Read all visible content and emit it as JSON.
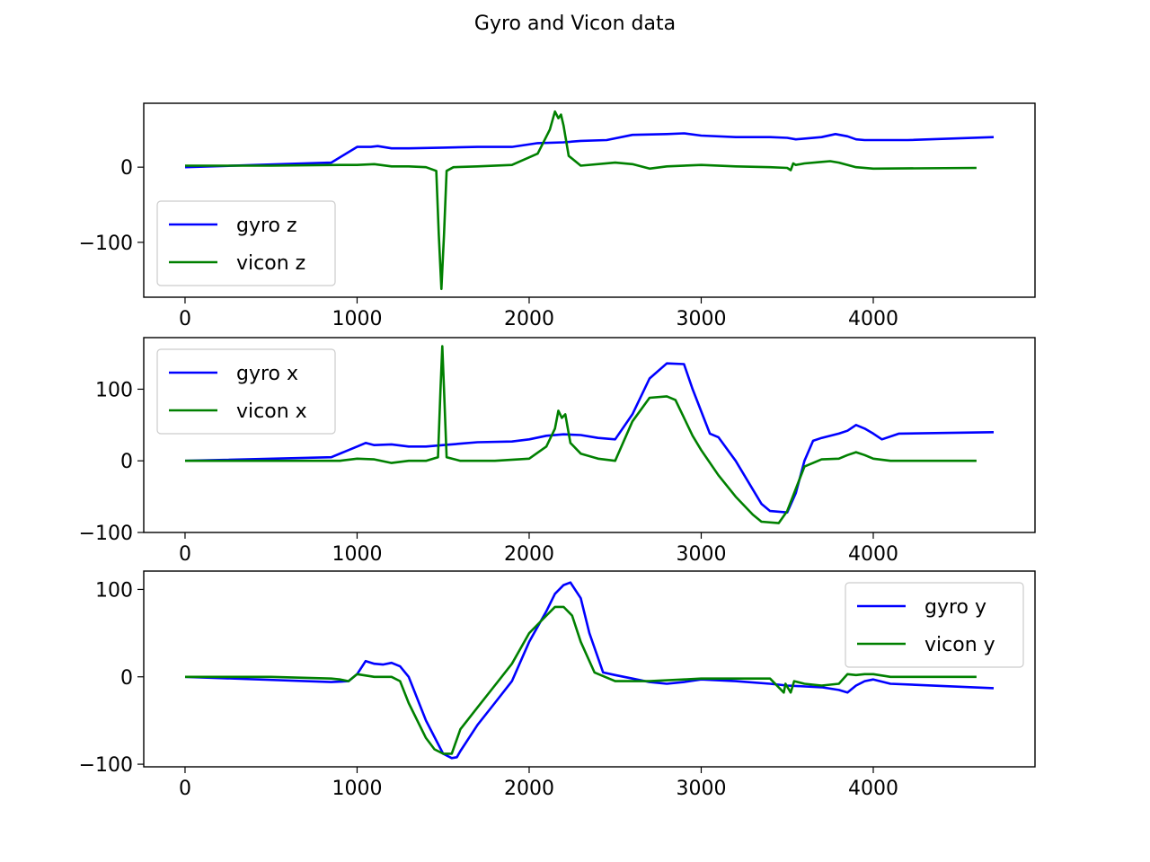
{
  "figure": {
    "title": "Gyro and Vicon data"
  },
  "colors": {
    "gyro": "#0000ff",
    "vicon": "#008000"
  },
  "chart_data": [
    {
      "type": "line",
      "title": "",
      "xlabel": "",
      "ylabel": "",
      "xlim": [
        -240,
        4940
      ],
      "ylim": [
        -173,
        85
      ],
      "xticks": [
        0,
        1000,
        2000,
        3000,
        4000
      ],
      "yticks": [
        0,
        -100
      ],
      "legend": "lower-left",
      "grid": false,
      "series": [
        {
          "name": "gyro z",
          "color": "#0000ff",
          "x": [
            0,
            850,
            1000,
            1080,
            1120,
            1200,
            1300,
            1500,
            1700,
            1900,
            2050,
            2200,
            2300,
            2450,
            2600,
            2800,
            2900,
            3000,
            3200,
            3400,
            3500,
            3550,
            3700,
            3780,
            3850,
            3900,
            3950,
            4050,
            4200,
            4700
          ],
          "y": [
            0,
            6,
            27,
            27,
            28,
            25,
            25,
            26,
            27,
            27,
            32,
            33,
            35,
            36,
            43,
            44,
            45,
            42,
            40,
            40,
            39,
            37,
            40,
            44,
            41,
            37,
            36,
            36,
            36,
            40
          ]
        },
        {
          "name": "vicon z",
          "color": "#008000",
          "x": [
            0,
            500,
            900,
            1000,
            1100,
            1200,
            1300,
            1400,
            1460,
            1475,
            1490,
            1505,
            1520,
            1560,
            1700,
            1900,
            2050,
            2120,
            2150,
            2170,
            2185,
            2200,
            2230,
            2300,
            2500,
            2600,
            2700,
            2800,
            3000,
            3200,
            3400,
            3500,
            3520,
            3535,
            3550,
            3600,
            3700,
            3750,
            3800,
            3900,
            4000,
            4600
          ],
          "y": [
            2,
            2,
            3,
            3,
            4,
            1,
            1,
            0,
            -5,
            -90,
            -162,
            -90,
            -5,
            0,
            1,
            3,
            18,
            50,
            74,
            65,
            70,
            55,
            15,
            2,
            6,
            4,
            -2,
            1,
            3,
            1,
            0,
            -1,
            -4,
            5,
            3,
            5,
            7,
            8,
            6,
            0,
            -2,
            -1
          ]
        }
      ]
    },
    {
      "type": "line",
      "title": "",
      "xlabel": "",
      "ylabel": "",
      "xlim": [
        -240,
        4940
      ],
      "ylim": [
        -100,
        172
      ],
      "xticks": [
        0,
        1000,
        2000,
        3000,
        4000
      ],
      "yticks": [
        100,
        0,
        -100
      ],
      "legend": "upper-left",
      "grid": false,
      "series": [
        {
          "name": "gyro x",
          "color": "#0000ff",
          "x": [
            0,
            850,
            1000,
            1050,
            1100,
            1200,
            1300,
            1400,
            1500,
            1600,
            1700,
            1900,
            2000,
            2100,
            2200,
            2300,
            2400,
            2500,
            2600,
            2700,
            2800,
            2900,
            2950,
            3050,
            3100,
            3200,
            3300,
            3350,
            3400,
            3500,
            3550,
            3600,
            3650,
            3700,
            3800,
            3850,
            3900,
            3950,
            4000,
            4050,
            4150,
            4700
          ],
          "y": [
            0,
            5,
            20,
            25,
            22,
            23,
            20,
            20,
            22,
            24,
            26,
            27,
            30,
            35,
            37,
            36,
            32,
            30,
            65,
            115,
            136,
            135,
            100,
            38,
            33,
            0,
            -40,
            -60,
            -70,
            -72,
            -45,
            0,
            28,
            32,
            38,
            42,
            50,
            45,
            38,
            30,
            38,
            40
          ]
        },
        {
          "name": "vicon x",
          "color": "#008000",
          "x": [
            0,
            500,
            900,
            1000,
            1100,
            1200,
            1300,
            1400,
            1470,
            1485,
            1495,
            1505,
            1520,
            1600,
            1800,
            2000,
            2100,
            2150,
            2170,
            2190,
            2210,
            2240,
            2300,
            2400,
            2500,
            2600,
            2700,
            2800,
            2850,
            2950,
            3000,
            3100,
            3200,
            3300,
            3350,
            3450,
            3500,
            3600,
            3700,
            3800,
            3850,
            3900,
            3950,
            4000,
            4100,
            4600
          ],
          "y": [
            0,
            0,
            0,
            3,
            2,
            -3,
            0,
            0,
            5,
            100,
            160,
            100,
            5,
            0,
            0,
            3,
            20,
            45,
            70,
            60,
            65,
            25,
            10,
            3,
            0,
            55,
            88,
            90,
            85,
            35,
            15,
            -20,
            -50,
            -75,
            -85,
            -87,
            -70,
            -8,
            2,
            3,
            8,
            12,
            8,
            3,
            0,
            0
          ]
        }
      ]
    },
    {
      "type": "line",
      "title": "",
      "xlabel": "",
      "ylabel": "",
      "xlim": [
        -240,
        4940
      ],
      "ylim": [
        -103,
        121
      ],
      "xticks": [
        0,
        1000,
        2000,
        3000,
        4000
      ],
      "yticks": [
        100,
        0,
        -100
      ],
      "legend": "upper-right",
      "grid": false,
      "series": [
        {
          "name": "gyro y",
          "color": "#0000ff",
          "x": [
            0,
            850,
            950,
            1000,
            1050,
            1100,
            1150,
            1200,
            1250,
            1300,
            1400,
            1500,
            1550,
            1580,
            1600,
            1700,
            1800,
            1900,
            2000,
            2100,
            2150,
            2200,
            2240,
            2300,
            2350,
            2430,
            2500,
            2600,
            2700,
            2800,
            2900,
            3000,
            3200,
            3400,
            3500,
            3700,
            3800,
            3850,
            3900,
            3950,
            4000,
            4100,
            4700
          ],
          "y": [
            0,
            -6,
            -5,
            3,
            18,
            15,
            14,
            16,
            12,
            0,
            -50,
            -88,
            -93,
            -92,
            -85,
            -55,
            -30,
            -5,
            40,
            75,
            95,
            105,
            108,
            90,
            50,
            5,
            2,
            -2,
            -6,
            -8,
            -6,
            -3,
            -5,
            -8,
            -10,
            -12,
            -15,
            -18,
            -10,
            -5,
            -3,
            -8,
            -13
          ]
        },
        {
          "name": "vicon y",
          "color": "#008000",
          "x": [
            0,
            500,
            850,
            900,
            950,
            1000,
            1100,
            1200,
            1250,
            1300,
            1400,
            1450,
            1500,
            1550,
            1600,
            1700,
            1800,
            1900,
            2000,
            2100,
            2150,
            2200,
            2250,
            2300,
            2380,
            2500,
            2700,
            2900,
            3000,
            3200,
            3400,
            3480,
            3490,
            3520,
            3540,
            3600,
            3700,
            3800,
            3850,
            3900,
            3950,
            4000,
            4100,
            4600
          ],
          "y": [
            0,
            0,
            -2,
            -3,
            -5,
            3,
            0,
            0,
            -5,
            -30,
            -70,
            -83,
            -88,
            -88,
            -60,
            -35,
            -10,
            15,
            50,
            70,
            80,
            80,
            70,
            40,
            5,
            -5,
            -5,
            -3,
            -2,
            -2,
            -2,
            -18,
            -8,
            -18,
            -5,
            -8,
            -10,
            -8,
            3,
            2,
            3,
            3,
            0,
            0
          ]
        }
      ]
    }
  ]
}
